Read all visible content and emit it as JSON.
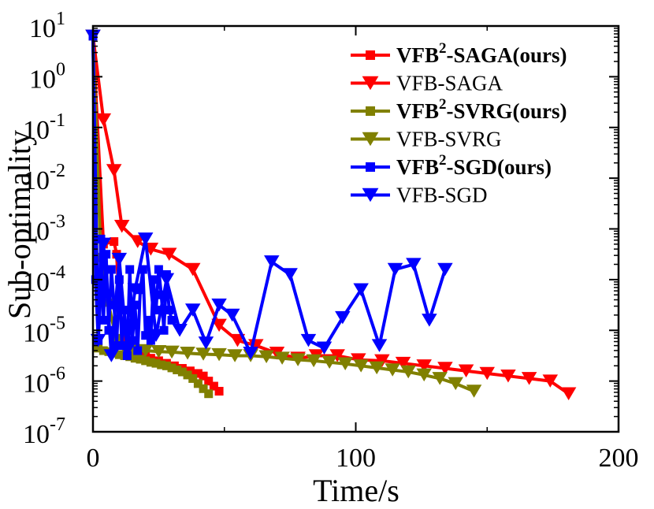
{
  "chart_data": {
    "type": "line",
    "title": "",
    "xlabel": "Time/s",
    "ylabel": "Sub-optimality",
    "xlim": [
      0,
      200
    ],
    "ylim_log10": [
      -7,
      1
    ],
    "x_ticks": [
      {
        "value": 0,
        "label": "0"
      },
      {
        "value": 100,
        "label": "100"
      },
      {
        "value": 200,
        "label": "200"
      }
    ],
    "y_ticks": [
      {
        "exp": 1,
        "base": "10",
        "sup": "1"
      },
      {
        "exp": 0,
        "base": "10",
        "sup": "0"
      },
      {
        "exp": -1,
        "base": "10",
        "sup": "-1"
      },
      {
        "exp": -2,
        "base": "10",
        "sup": "-2"
      },
      {
        "exp": -3,
        "base": "10",
        "sup": "-3"
      },
      {
        "exp": -4,
        "base": "10",
        "sup": "-4"
      },
      {
        "exp": -5,
        "base": "10",
        "sup": "-5"
      },
      {
        "exp": -6,
        "base": "10",
        "sup": "-6"
      },
      {
        "exp": -7,
        "base": "10",
        "sup": "-7"
      }
    ],
    "legend_position": "top-right",
    "series": [
      {
        "name": "VFB2-SAGA(ours)",
        "label_pre": "VFB",
        "label_sup": "2",
        "label_post": "-SAGA(ours)",
        "bold": true,
        "color": "#ff0000",
        "marker": "square",
        "x": [
          0,
          4,
          8,
          9,
          10,
          12,
          14,
          17,
          20,
          22,
          25,
          28,
          31,
          34,
          37,
          40,
          42,
          44,
          46,
          48
        ],
        "log10_y": [
          0.8,
          -3.3,
          -3.25,
          -3.5,
          -4.5,
          -5.3,
          -5.5,
          -5.5,
          -5.5,
          -5.55,
          -5.6,
          -5.65,
          -5.7,
          -5.75,
          -5.8,
          -5.85,
          -5.9,
          -6.0,
          -6.1,
          -6.2
        ]
      },
      {
        "name": "VFB-SAGA",
        "label_pre": "VFB-SAGA",
        "label_sup": "",
        "label_post": "",
        "bold": false,
        "color": "#ff0000",
        "marker": "triangle-down",
        "x": [
          0,
          4,
          8,
          11,
          17,
          22,
          29,
          38,
          48,
          55,
          62,
          70,
          78,
          85,
          93,
          101,
          110,
          118,
          126,
          134,
          142,
          150,
          158,
          166,
          174,
          181
        ],
        "log10_y": [
          0.8,
          -0.85,
          -1.85,
          -2.95,
          -3.25,
          -3.4,
          -3.5,
          -3.8,
          -4.9,
          -5.2,
          -5.3,
          -5.45,
          -5.55,
          -5.5,
          -5.5,
          -5.58,
          -5.6,
          -5.65,
          -5.7,
          -5.75,
          -5.8,
          -5.85,
          -5.9,
          -5.95,
          -6.0,
          -6.25
        ]
      },
      {
        "name": "VFB2-SVRG(ours)",
        "label_pre": "VFB",
        "label_sup": "2",
        "label_post": "-SVRG(ours)",
        "bold": true,
        "color": "#808000",
        "marker": "square",
        "x": [
          0,
          2,
          4,
          6,
          8,
          10,
          12,
          14,
          16,
          18,
          20,
          22,
          24,
          26,
          28,
          30,
          32,
          34,
          36,
          38,
          40,
          42,
          44
        ],
        "log10_y": [
          0.8,
          -5.35,
          -5.4,
          -5.42,
          -5.45,
          -5.48,
          -5.5,
          -5.52,
          -5.55,
          -5.57,
          -5.6,
          -5.63,
          -5.65,
          -5.68,
          -5.7,
          -5.74,
          -5.78,
          -5.82,
          -5.88,
          -5.95,
          -6.05,
          -6.15,
          -6.25
        ]
      },
      {
        "name": "VFB-SVRG",
        "label_pre": "VFB-SVRG",
        "label_sup": "",
        "label_post": "",
        "bold": false,
        "color": "#808000",
        "marker": "triangle-down",
        "x": [
          0,
          3,
          6,
          9,
          12,
          15,
          20,
          25,
          30,
          36,
          42,
          48,
          54,
          60,
          66,
          72,
          78,
          84,
          90,
          96,
          102,
          108,
          114,
          120,
          126,
          132,
          138,
          145
        ],
        "log10_y": [
          0.8,
          -3.6,
          -4.5,
          -5.2,
          -5.35,
          -5.4,
          -5.4,
          -5.42,
          -5.43,
          -5.45,
          -5.47,
          -5.48,
          -5.5,
          -5.5,
          -5.52,
          -5.55,
          -5.58,
          -5.6,
          -5.63,
          -5.66,
          -5.7,
          -5.74,
          -5.78,
          -5.82,
          -5.88,
          -5.95,
          -6.05,
          -6.2
        ]
      },
      {
        "name": "VFB2-SGD(ours)",
        "label_pre": "VFB",
        "label_sup": "2",
        "label_post": "-SGD(ours)",
        "bold": true,
        "color": "#0000ff",
        "marker": "square",
        "x": [
          0,
          1,
          2,
          3,
          4,
          5,
          6,
          7,
          8,
          9,
          10,
          11,
          12,
          13,
          14,
          15,
          16,
          17,
          18,
          19,
          20,
          21,
          22,
          23,
          24,
          25,
          26,
          27,
          28,
          29,
          30
        ],
        "log10_y": [
          0.8,
          -4.0,
          -5.2,
          -3.2,
          -4.8,
          -3.5,
          -5.0,
          -3.8,
          -4.5,
          -5.3,
          -4.0,
          -5.3,
          -4.6,
          -5.5,
          -3.8,
          -5.2,
          -4.5,
          -5.4,
          -4.2,
          -3.8,
          -5.1,
          -4.8,
          -5.2,
          -4.0,
          -4.6,
          -3.8,
          -4.3,
          -5.0,
          -3.9,
          -4.6,
          -4.8
        ]
      },
      {
        "name": "VFB-SGD",
        "label_pre": "VFB-SGD",
        "label_sup": "",
        "label_post": "",
        "bold": false,
        "color": "#0000ff",
        "marker": "triangle-down",
        "x": [
          0,
          2,
          4,
          7,
          10,
          13,
          16,
          20,
          24,
          28,
          33,
          38,
          43,
          48,
          53,
          60,
          68,
          75,
          82,
          88,
          95,
          102,
          109,
          115,
          122,
          128,
          134
        ],
        "log10_y": [
          0.8,
          -5.2,
          -3.3,
          -5.5,
          -3.6,
          -5.4,
          -4.2,
          -3.2,
          -5.1,
          -4.0,
          -5.0,
          -4.6,
          -5.25,
          -4.5,
          -4.7,
          -5.45,
          -3.65,
          -3.9,
          -5.2,
          -5.35,
          -4.75,
          -4.2,
          -5.3,
          -3.8,
          -3.7,
          -4.8,
          -3.8
        ]
      }
    ]
  }
}
